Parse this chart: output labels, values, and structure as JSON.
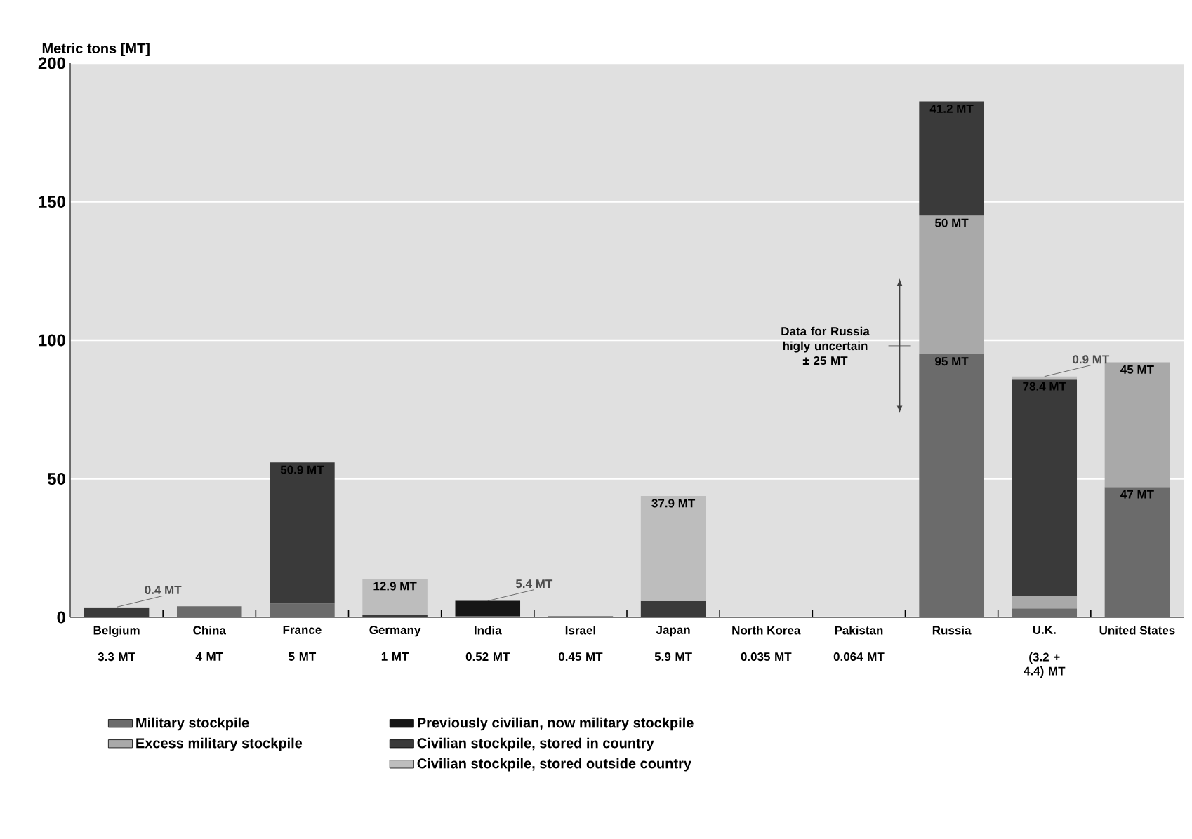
{
  "chart_data": {
    "type": "bar",
    "stacked": true,
    "ylabel": "Metric tons [MT]",
    "categories": [
      "Belgium",
      "China",
      "France",
      "Germany",
      "India",
      "Israel",
      "Japan",
      "North Korea",
      "Pakistan",
      "Russia",
      "U.K.",
      "United States"
    ],
    "series": [
      {
        "name": "Military stockpile",
        "color": "#6b6b6b",
        "values": [
          null,
          4,
          5,
          null,
          0.52,
          0.45,
          null,
          0.035,
          0.064,
          95,
          3.2,
          47
        ],
        "value_labels": [
          null,
          "4 MT",
          "5 MT",
          null,
          "0.52 MT",
          "0.45 MT",
          null,
          "0.035 MT",
          "0.064 MT",
          "95 MT",
          "(3.2 + 4.4) MT",
          "47 MT"
        ]
      },
      {
        "name": "Excess military stockpile",
        "color": "#a9a9a9",
        "values": [
          null,
          null,
          null,
          null,
          null,
          null,
          null,
          null,
          null,
          50,
          4.4,
          45
        ],
        "value_labels": [
          null,
          null,
          null,
          null,
          null,
          null,
          null,
          null,
          null,
          "50 MT",
          null,
          "45 MT"
        ]
      },
      {
        "name": "Previously civilian, now military stockpile",
        "color": "#161616",
        "values": [
          null,
          null,
          null,
          null,
          5.4,
          null,
          null,
          null,
          null,
          null,
          null,
          null
        ],
        "value_labels": [
          null,
          null,
          null,
          null,
          "5.4 MT",
          null,
          null,
          null,
          null,
          null,
          null,
          null
        ]
      },
      {
        "name": "Civilian stockpile, stored in country",
        "color": "#3a3a3a",
        "values": [
          3.3,
          null,
          50.9,
          1,
          null,
          null,
          5.9,
          null,
          null,
          41.2,
          78.4,
          null
        ],
        "value_labels": [
          "3.3 MT",
          null,
          "50.9 MT",
          "1 MT",
          null,
          null,
          "5.9 MT",
          null,
          null,
          "41.2 MT",
          "78.4 MT",
          null
        ]
      },
      {
        "name": "Civilian stockpile, stored outside country",
        "color": "#bdbdbd",
        "values": [
          0.4,
          null,
          null,
          12.9,
          null,
          null,
          37.9,
          null,
          null,
          null,
          0.9,
          null
        ],
        "value_labels": [
          "0.4 MT",
          null,
          null,
          "12.9 MT",
          null,
          null,
          "37.9 MT",
          null,
          null,
          null,
          "0.9 MT",
          null
        ]
      }
    ],
    "ylim": [
      0,
      200
    ],
    "yticks": [
      0,
      50,
      100,
      150,
      200
    ],
    "grid": "y",
    "legend": "bottom",
    "annotations": [
      "Data for Russia higly uncertain ± 25 MT"
    ]
  }
}
